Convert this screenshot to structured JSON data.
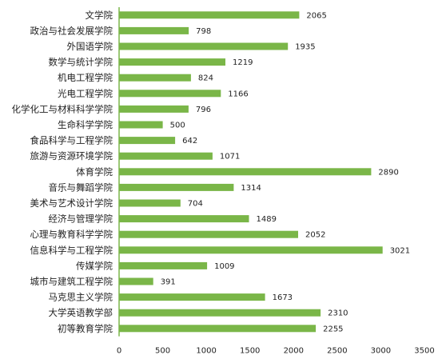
{
  "chart_data": {
    "type": "bar",
    "orientation": "horizontal",
    "categories": [
      "文学院",
      "政治与社会发展学院",
      "外国语学院",
      "数学与统计学院",
      "机电工程学院",
      "光电工程学院",
      "化学化工与材料科学学院",
      "生命科学学院",
      "食品科学与工程学院",
      "旅游与资源环境学院",
      "体育学院",
      "音乐与舞蹈学院",
      "美术与艺术设计学院",
      "经济与管理学院",
      "心理与教育科学学院",
      "信息科学与工程学院",
      "传媒学院",
      "城市与建筑工程学院",
      "马克思主义学院",
      "大学英语教学部",
      "初等教育学院"
    ],
    "values": [
      2065,
      798,
      1935,
      1219,
      824,
      1166,
      796,
      500,
      642,
      1071,
      2890,
      1314,
      704,
      1489,
      2052,
      3021,
      1009,
      391,
      1673,
      2310,
      2255
    ],
    "value_labels": [
      "2065",
      "798",
      "1935",
      "1219",
      "824",
      "1166",
      "796",
      "500",
      "642",
      "1071",
      "2890",
      "1314",
      "704",
      "1489",
      "2052",
      "3021",
      "1009",
      "391",
      "1673",
      "2310",
      "2255"
    ],
    "xlim": [
      0,
      3500
    ],
    "xticks": [
      0,
      500,
      1000,
      1500,
      2000,
      2500,
      3000,
      3500
    ],
    "xtick_labels": [
      "0",
      "500",
      "1000",
      "1500",
      "2000",
      "2500",
      "3000",
      "3500"
    ],
    "title": "",
    "xlabel": "",
    "ylabel": "",
    "grid": false,
    "legend": "none",
    "colors": {
      "bar": "#7ab648",
      "axis": "#7ab648",
      "text": "#222222"
    }
  }
}
